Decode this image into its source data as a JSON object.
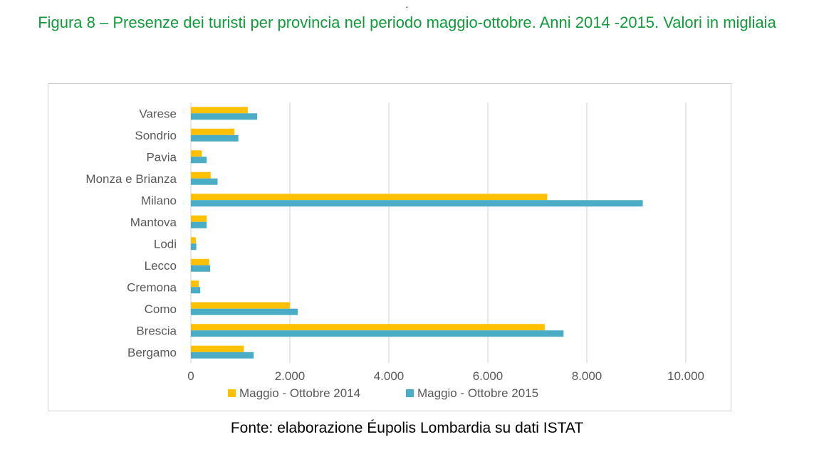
{
  "top_mark": ".",
  "title": "Figura 8 – Presenze dei turisti per provincia nel periodo maggio-ottobre. Anni 2014 -2015. Valori in migliaia",
  "source": "Fonte: elaborazione Éupolis Lombardia su dati ISTAT",
  "chart_data": {
    "type": "bar",
    "orientation": "horizontal",
    "title": "",
    "xlabel": "",
    "ylabel": "",
    "categories": [
      "Varese",
      "Sondrio",
      "Pavia",
      "Monza e Brianza",
      "Milano",
      "Mantova",
      "Lodi",
      "Lecco",
      "Cremona",
      "Como",
      "Brescia",
      "Bergamo"
    ],
    "series": [
      {
        "name": "Maggio - Ottobre 2014",
        "color": "#FFC000",
        "values": [
          1150,
          880,
          220,
          400,
          7200,
          320,
          100,
          370,
          160,
          2000,
          7150,
          1070
        ]
      },
      {
        "name": "Maggio - Ottobre 2015",
        "color": "#4BACC6",
        "values": [
          1340,
          960,
          320,
          540,
          9130,
          320,
          110,
          390,
          190,
          2160,
          7530,
          1270
        ]
      }
    ],
    "xlim": [
      0,
      10000
    ],
    "xticks": [
      0,
      2000,
      4000,
      6000,
      8000,
      10000
    ],
    "xtick_labels": [
      "0",
      "2.000",
      "4.000",
      "6.000",
      "8.000",
      "10.000"
    ],
    "grid": "vertical",
    "legend": "bottom"
  }
}
